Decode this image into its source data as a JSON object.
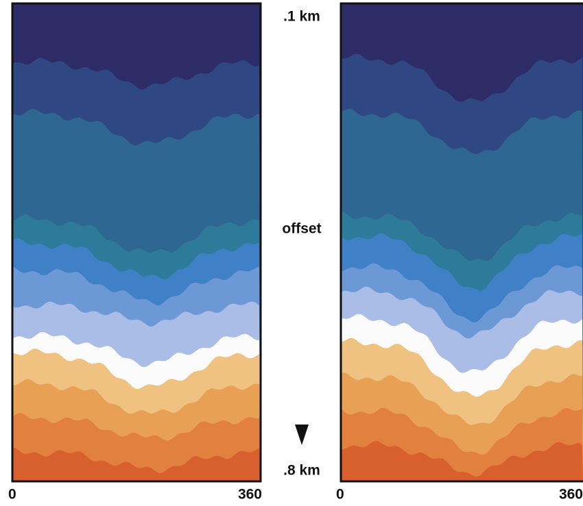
{
  "left_panel": {
    "x_start": "0",
    "x_end": "360"
  },
  "right_panel": {
    "x_start": "0",
    "x_end": "360"
  },
  "depth_labels": {
    "top": ".1 km",
    "middle": "offset",
    "bottom": ".8 km"
  }
}
